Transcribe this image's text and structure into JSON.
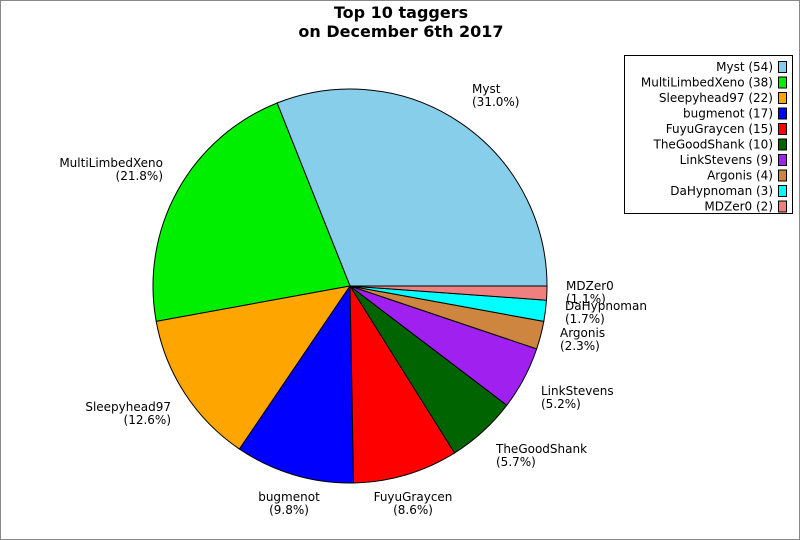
{
  "chart_data": {
    "type": "pie",
    "title": [
      "Top 10 taggers",
      "on December 6th 2017"
    ],
    "legend_position": "top-right",
    "slices": [
      {
        "name": "Myst",
        "value": 54,
        "percent": "(31.0%)",
        "legend": "Myst (54)",
        "color": "#87ceeb"
      },
      {
        "name": "MultiLimbedXeno",
        "value": 38,
        "percent": "(21.8%)",
        "legend": "MultiLimbedXeno (38)",
        "color": "#00ee00"
      },
      {
        "name": "Sleepyhead97",
        "value": 22,
        "percent": "(12.6%)",
        "legend": "Sleepyhead97 (22)",
        "color": "#ffa500"
      },
      {
        "name": "bugmenot",
        "value": 17,
        "percent": "(9.8%)",
        "legend": "bugmenot (17)",
        "color": "#0000ff"
      },
      {
        "name": "FuyuGraycen",
        "value": 15,
        "percent": "(8.6%)",
        "legend": "FuyuGraycen (15)",
        "color": "#ff0000"
      },
      {
        "name": "TheGoodShank",
        "value": 10,
        "percent": "(5.7%)",
        "legend": "TheGoodShank (10)",
        "color": "#006400"
      },
      {
        "name": "LinkStevens",
        "value": 9,
        "percent": "(5.2%)",
        "legend": "LinkStevens (9)",
        "color": "#a020f0"
      },
      {
        "name": "Argonis",
        "value": 4,
        "percent": "(2.3%)",
        "legend": "Argonis (4)",
        "color": "#cd853f"
      },
      {
        "name": "DaHypnoman",
        "value": 3,
        "percent": "(1.7%)",
        "legend": "DaHypnoman (3)",
        "color": "#00ffff"
      },
      {
        "name": "MDZer0",
        "value": 2,
        "percent": "(1.1%)",
        "legend": "MDZer0 (2)",
        "color": "#f08080"
      }
    ]
  }
}
